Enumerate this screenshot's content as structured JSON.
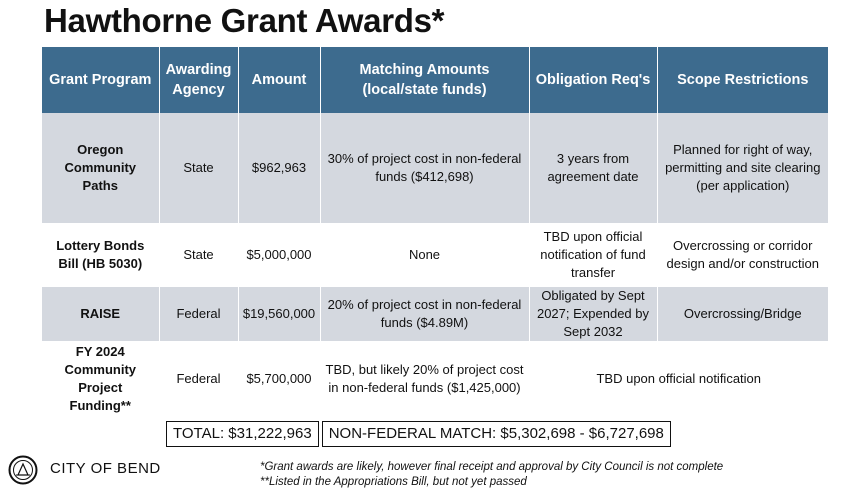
{
  "title": "Hawthorne Grant Awards*",
  "table": {
    "headers": [
      "Grant Program",
      "Awarding Agency",
      "Amount",
      "Matching Amounts (local/state funds)",
      "Obligation Req's",
      "Scope Restrictions"
    ],
    "rows": [
      {
        "program": "Oregon Community Paths",
        "agency": "State",
        "amount": "$962,963",
        "matching": "30% of project cost in non-federal funds ($412,698)",
        "obligation": "3 years from agreement date",
        "scope": "Planned for right of way, permitting and site clearing (per application)"
      },
      {
        "program": "Lottery Bonds Bill (HB 5030)",
        "agency": "State",
        "amount": "$5,000,000",
        "matching": "None",
        "obligation": "TBD upon official notification of fund transfer",
        "scope": "Overcrossing or corridor design and/or construction"
      },
      {
        "program": "RAISE",
        "agency": "Federal",
        "amount": "$19,560,000",
        "matching": "20% of project cost in non-federal funds ($4.89M)",
        "obligation": "Obligated by Sept 2027; Expended by Sept 2032",
        "scope": "Overcrossing/Bridge"
      },
      {
        "program": "FY 2024 Community Project Funding**",
        "agency": "Federal",
        "amount": "$5,700,000",
        "matching": "TBD, but likely 20% of project cost in non-federal funds ($1,425,000)",
        "obligation_scope": "TBD upon official notification"
      }
    ]
  },
  "totals": {
    "total": "TOTAL:  $31,222,963",
    "match": "NON-FEDERAL MATCH:  $5,302,698 - $6,727,698"
  },
  "footer": {
    "org": "CITY OF BEND",
    "note1": "*Grant awards are likely, however final receipt and approval by City Council is not complete",
    "note2": "**Listed in the Appropriations Bill, but not yet passed"
  }
}
